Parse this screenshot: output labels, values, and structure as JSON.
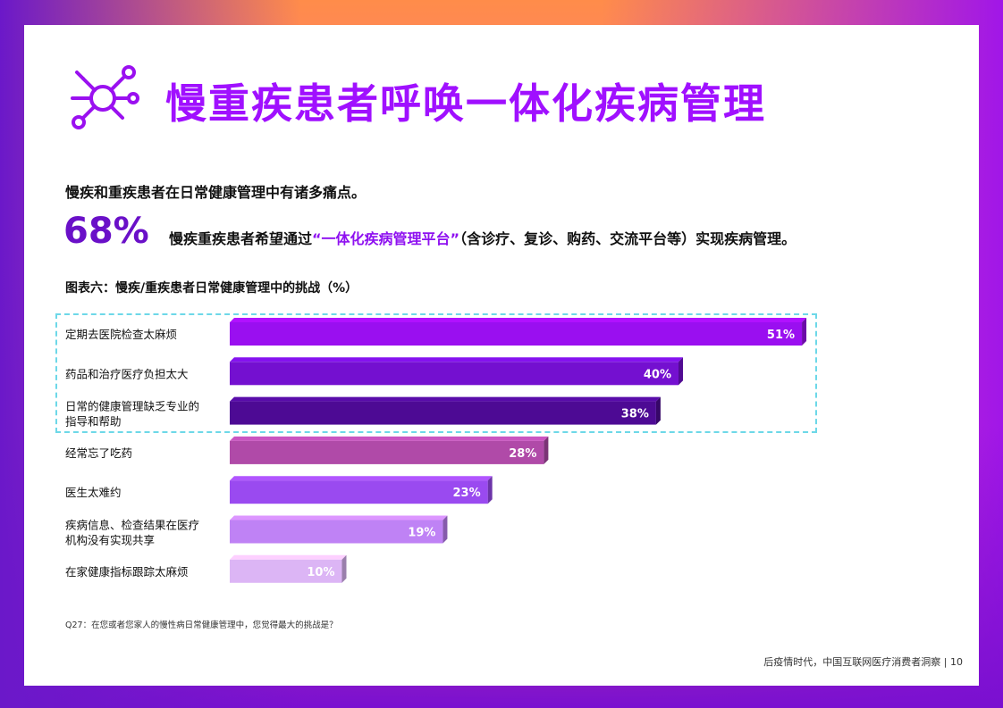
{
  "title": "慢重疾患者呼唤一体化疾病管理",
  "subtitle": "慢疾和重疾患者在日常健康管理中有诸多痛点。",
  "stat": {
    "value": "68%",
    "text_before": "慢疾重疾患者希望通过",
    "text_highlight": "“一体化疾病管理平台”",
    "text_after": "（含诊疗、复诊、购药、交流平台等）实现疾病管理。"
  },
  "colors": {
    "title": "#a010ff",
    "stat": "#6a10c8",
    "highlight_border": "#6dd8e8"
  },
  "chart_data": {
    "type": "bar",
    "orientation": "horizontal",
    "title": "图表六：慢疾/重疾患者日常健康管理中的挑战（%）",
    "categories": [
      [
        "定期去医院检查太麻烦"
      ],
      [
        "药品和治疗医疗负担太大"
      ],
      [
        "日常的健康管理缺乏专业的",
        "指导和帮助"
      ],
      [
        "经常忘了吃药"
      ],
      [
        "医生太难约"
      ],
      [
        "疾病信息、检查结果在医疗",
        "机构没有实现共享"
      ],
      [
        "在家健康指标跟踪太麻烦"
      ]
    ],
    "values": [
      51,
      40,
      38,
      28,
      23,
      19,
      10
    ],
    "value_labels": [
      "51%",
      "40%",
      "38%",
      "28%",
      "23%",
      "19%",
      "10%"
    ],
    "bar_colors": [
      "#9a0ff0",
      "#7410d0",
      "#4d0a94",
      "#b04aa8",
      "#9a4af0",
      "#bf82f5",
      "#dcb5f5"
    ],
    "highlighted_categories": 3
  },
  "footnote": "Q27：在您或者您家人的慢性病日常健康管理中，您觉得最大的挑战是？",
  "footer": "后疫情时代，中国互联网医疗消费者洞察 | 10"
}
